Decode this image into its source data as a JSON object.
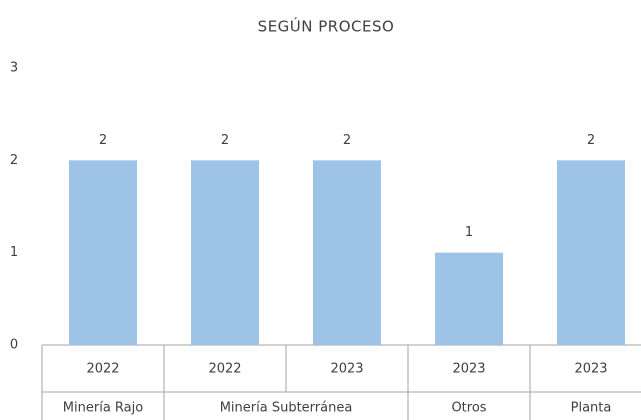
{
  "chart_data": {
    "type": "bar",
    "title": "SEGÚN PROCESO",
    "groups": [
      {
        "name": "Minería Rajo",
        "categories": [
          "2022"
        ],
        "values": [
          2
        ]
      },
      {
        "name": "Minería Subterránea",
        "categories": [
          "2022",
          "2023"
        ],
        "values": [
          2,
          2
        ]
      },
      {
        "name": "Otros",
        "categories": [
          "2023"
        ],
        "values": [
          1
        ]
      },
      {
        "name": "Planta",
        "categories": [
          "2023"
        ],
        "values": [
          2
        ]
      }
    ],
    "color": "#9dc3e6",
    "ylim": [
      0,
      3
    ],
    "yticks": [
      0,
      1,
      2,
      3
    ],
    "grid": false,
    "data_labels": true
  }
}
